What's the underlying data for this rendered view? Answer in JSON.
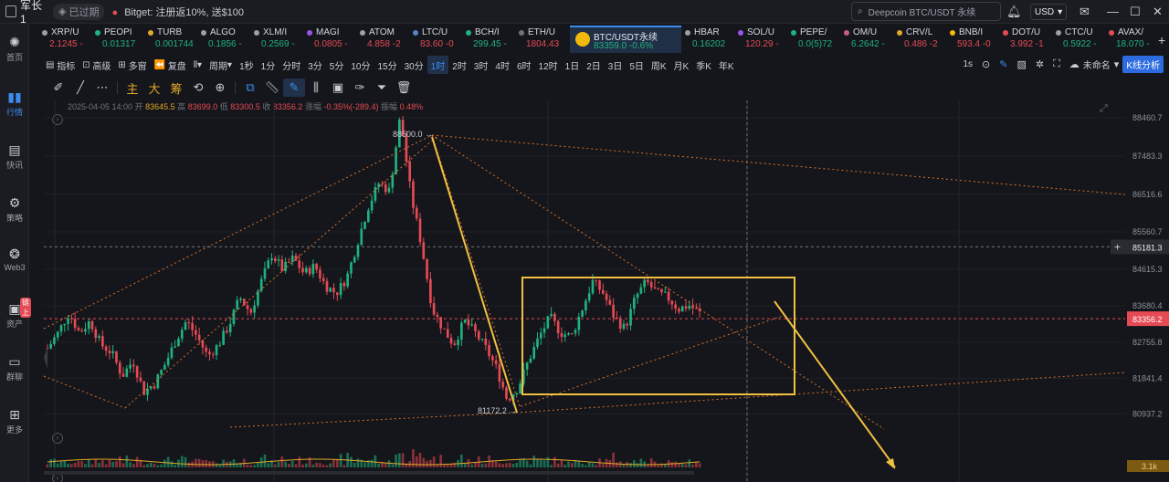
{
  "topbar": {
    "username": "军长1",
    "expired_label": "已过期",
    "promo_exchange": "Bitget:",
    "promo_text": "注册返10%, 送$100",
    "search_placeholder": "Deepcoin BTC/USDT 永续",
    "currency": "USD"
  },
  "leftnav": [
    {
      "label": "首页",
      "icon": "home-icon"
    },
    {
      "label": "行情",
      "icon": "market-chart-icon",
      "active": true
    },
    {
      "label": "快讯",
      "icon": "news-icon"
    },
    {
      "label": "策略",
      "icon": "robot-icon"
    },
    {
      "label": "Web3",
      "icon": "web3-icon"
    },
    {
      "label": "资产",
      "icon": "wallet-icon",
      "badge": "链上"
    },
    {
      "label": "群聊",
      "icon": "chat-icon"
    },
    {
      "label": "更多",
      "icon": "more-grid-icon"
    }
  ],
  "tickers": [
    {
      "name": "XRP/U",
      "price": "2.1245",
      "change": "-",
      "dir": "down",
      "color": "#9aa0aa"
    },
    {
      "name": "PEOPI",
      "price": "0.01317",
      "change": "",
      "dir": "up",
      "color": "#1fb27f"
    },
    {
      "name": "TURB",
      "price": "0.001744",
      "change": "",
      "dir": "up",
      "color": "#e1a82a"
    },
    {
      "name": "ALGO",
      "price": "0.1856",
      "change": "-",
      "dir": "up",
      "color": "#9aa0aa"
    },
    {
      "name": "XLM/I",
      "price": "0.2569",
      "change": "-",
      "dir": "up",
      "color": "#9aa0aa"
    },
    {
      "name": "MAGI",
      "price": "0.0805",
      "change": "-",
      "dir": "down",
      "color": "#9a55e5"
    },
    {
      "name": "ATOM",
      "price": "4.858",
      "change": "-2",
      "dir": "down",
      "color": "#9aa0aa"
    },
    {
      "name": "LTC/U",
      "price": "83.60",
      "change": "-0",
      "dir": "down",
      "color": "#5a82c8"
    },
    {
      "name": "BCH/I",
      "price": "299.45",
      "change": "-",
      "dir": "up",
      "color": "#1fb27f"
    },
    {
      "name": "ETH/U",
      "price": "1804.43",
      "change": "",
      "dir": "down",
      "color": "#6e737d"
    },
    {
      "name": "BTC/USDT永续",
      "price": "83359.0",
      "change": "-0.6%",
      "dir": "up",
      "color": "#f0b90b",
      "active": true
    },
    {
      "name": "HBAR",
      "price": "0.16202",
      "change": "",
      "dir": "up",
      "color": "#9aa0aa"
    },
    {
      "name": "SOL/U",
      "price": "120.29",
      "change": "-",
      "dir": "down",
      "color": "#9a55e5"
    },
    {
      "name": "PEPE/",
      "price": "0.0(5)72",
      "change": "",
      "dir": "up",
      "color": "#1fb27f"
    },
    {
      "name": "OM/U",
      "price": "6.2642",
      "change": "-",
      "dir": "up",
      "color": "#c85a8c"
    },
    {
      "name": "CRV/L",
      "price": "0.486",
      "change": "-2",
      "dir": "down",
      "color": "#e1a82a"
    },
    {
      "name": "BNB/I",
      "price": "593.4",
      "change": "-0",
      "dir": "down",
      "color": "#f0b90b"
    },
    {
      "name": "DOT/U",
      "price": "3.992",
      "change": "-1",
      "dir": "down",
      "color": "#e54a55"
    },
    {
      "name": "CTC/U",
      "price": "0.5922",
      "change": "-",
      "dir": "up",
      "color": "#9aa0aa"
    },
    {
      "name": "AVAX/",
      "price": "18.070",
      "change": "-",
      "dir": "up",
      "color": "#e54a55"
    }
  ],
  "toolbar1": {
    "items": [
      "指标",
      "高级",
      "多窗",
      "复盘",
      "",
      "周期"
    ],
    "periods": [
      "1秒",
      "1分",
      "分时",
      "3分",
      "5分",
      "10分",
      "15分",
      "30分",
      "1时",
      "2时",
      "3时",
      "4时",
      "6时",
      "12时",
      "1日",
      "2日",
      "3日",
      "5日",
      "周K",
      "月K",
      "季K",
      "年K"
    ],
    "selected_period": "1时",
    "right_interval": "1s",
    "unnamed_label": "未命名",
    "kline_analysis": "K线分析"
  },
  "toolbar2": {
    "cn_tools": [
      "主",
      "大",
      "筹"
    ]
  },
  "ohlc": {
    "datetime": "2025-04-05 14:00",
    "open_label": "开",
    "open": "83645.5",
    "high_label": "高",
    "high": "83699.0",
    "low_label": "低",
    "low": "83300.5",
    "close_label": "收",
    "close": "83356.2",
    "change_label": "涨幅",
    "change": "-0.35%(-289.4)",
    "amplitude_label": "振幅",
    "amplitude": "0.48%"
  },
  "chart_data": {
    "type": "candlestick",
    "symbol": "BTC/USDT永续",
    "interval": "1时",
    "ylim": [
      80600,
      88900
    ],
    "y_ticks": [
      88460.7,
      87483.3,
      86516.6,
      85560.7,
      84615.3,
      83680.4,
      82755.8,
      81841.4,
      80937.2
    ],
    "last_price": 83356.2,
    "crosshair_price": 85181.3,
    "annotations": {
      "high": "88500.0",
      "low": "81172.2"
    },
    "volume_label": "3.1k",
    "close_path": [
      82600,
      83000,
      83500,
      83000,
      83300,
      82700,
      82500,
      81900,
      82300,
      81500,
      81700,
      82200,
      82800,
      83300,
      82900,
      82400,
      82700,
      83200,
      83900,
      83500,
      84300,
      85000,
      84600,
      84900,
      84500,
      84700,
      84200,
      84000,
      84400,
      85300,
      86200,
      86800,
      86600,
      88500,
      86500,
      85200,
      83600,
      83100,
      82700,
      83300,
      83000,
      82600,
      82100,
      81300,
      81600,
      82300,
      82900,
      83400,
      83000,
      82900,
      83600,
      84300,
      84000,
      83400,
      83100,
      83900,
      84300,
      84000,
      83900,
      83600,
      83700,
      83500
    ]
  }
}
